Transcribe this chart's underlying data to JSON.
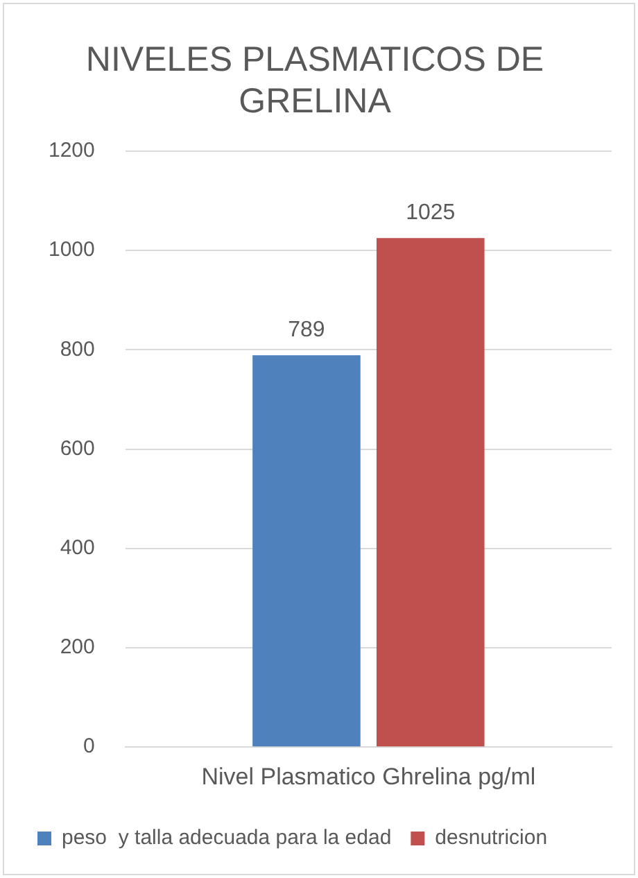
{
  "chart_data": {
    "type": "bar",
    "title": [
      "NIVELES PLASMATICOS DE",
      "GRELINA"
    ],
    "categories": [
      "Nivel Plasmatico Ghrelina pg/ml"
    ],
    "series": [
      {
        "name": "peso  y talla adecuada para la edad",
        "color": "#4f81bd",
        "values": [
          789
        ]
      },
      {
        "name": "desnutricion",
        "color": "#c0504d",
        "values": [
          1025
        ]
      }
    ],
    "ylim": [
      0,
      1200
    ],
    "yticks": [
      0,
      200,
      400,
      600,
      800,
      1000,
      1200
    ],
    "grid": "y",
    "legend": "bottom",
    "data_labels": true
  }
}
